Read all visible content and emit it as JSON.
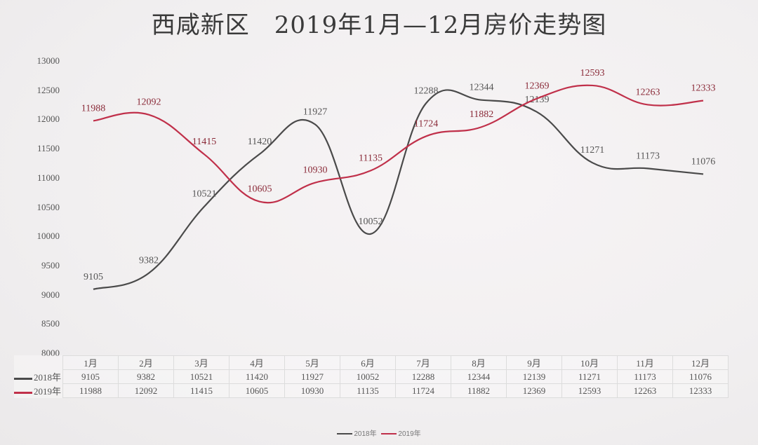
{
  "title": "西咸新区　2019年1月—12月房价走势图",
  "chart_data": {
    "type": "line",
    "title": "西咸新区 2019年1月—12月房价走势图",
    "xlabel": "",
    "ylabel": "",
    "ylim": [
      8000,
      13000
    ],
    "yticks": [
      13000,
      12500,
      12000,
      11500,
      11000,
      10500,
      10000,
      9500,
      9000,
      8500,
      8000
    ],
    "categories": [
      "1月",
      "2月",
      "3月",
      "4月",
      "5月",
      "6月",
      "7月",
      "8月",
      "9月",
      "10月",
      "11月",
      "12月"
    ],
    "series": [
      {
        "name": "2018年",
        "color": "#4a4a4a",
        "values": [
          9105,
          9382,
          10521,
          11420,
          11927,
          10052,
          12288,
          12344,
          12139,
          11271,
          11173,
          11076
        ]
      },
      {
        "name": "2019年",
        "color": "#c0304a",
        "values": [
          11988,
          12092,
          11415,
          10605,
          10930,
          11135,
          11724,
          11882,
          12369,
          12593,
          12263,
          12333
        ]
      }
    ],
    "grid": false,
    "legend_position": "bottom",
    "data_table": true,
    "smooth": true
  },
  "legend": {
    "items": [
      {
        "label": "2018年"
      },
      {
        "label": "2019年"
      }
    ]
  }
}
